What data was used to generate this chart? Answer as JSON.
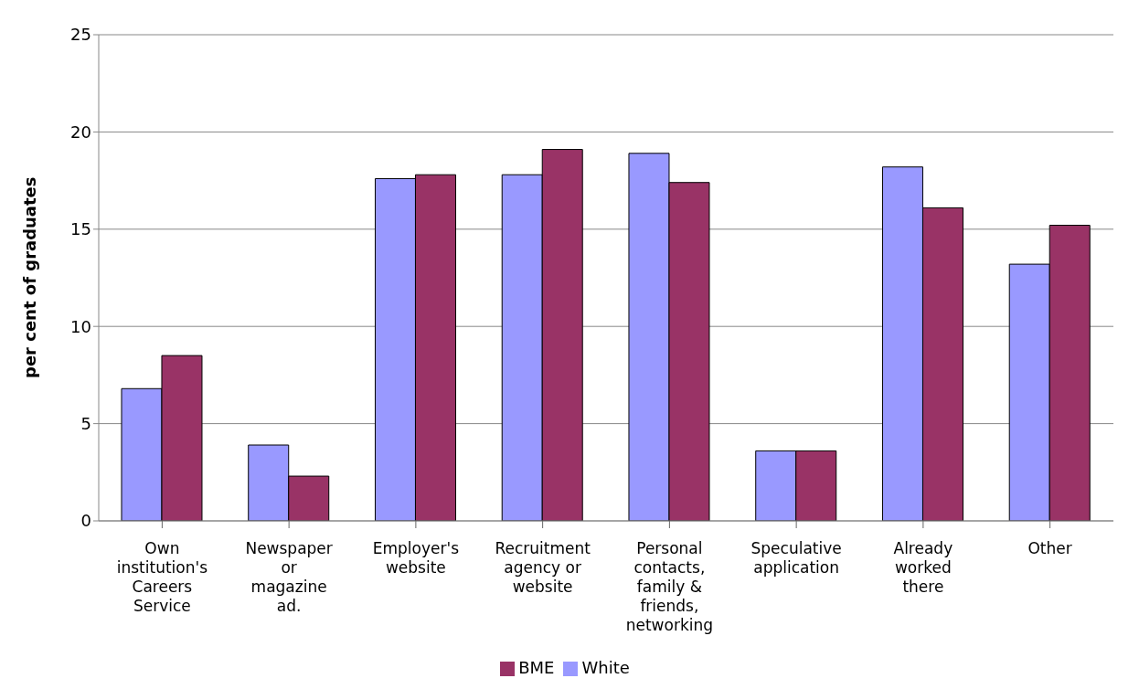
{
  "chart_data": {
    "type": "bar",
    "ylabel": "per cent of graduates",
    "categories": [
      "Own institution's Careers Service",
      "Newspaper or magazine ad.",
      "Employer's website",
      "Recruitment agency or website",
      "Personal contacts, family & friends, networking",
      "Speculative application",
      "Already worked there",
      "Other"
    ],
    "series": [
      {
        "name": "White",
        "color": "#9999ff",
        "values": [
          6.8,
          3.9,
          17.6,
          17.8,
          18.9,
          3.6,
          18.2,
          13.2
        ]
      },
      {
        "name": "BME",
        "color": "#993366",
        "values": [
          8.5,
          2.3,
          17.8,
          19.1,
          17.4,
          3.6,
          16.1,
          15.2
        ]
      }
    ],
    "ylim": [
      0,
      25
    ],
    "yticks": [
      0,
      5,
      10,
      15,
      20,
      25
    ],
    "grid": "y",
    "legend": "bottom"
  }
}
